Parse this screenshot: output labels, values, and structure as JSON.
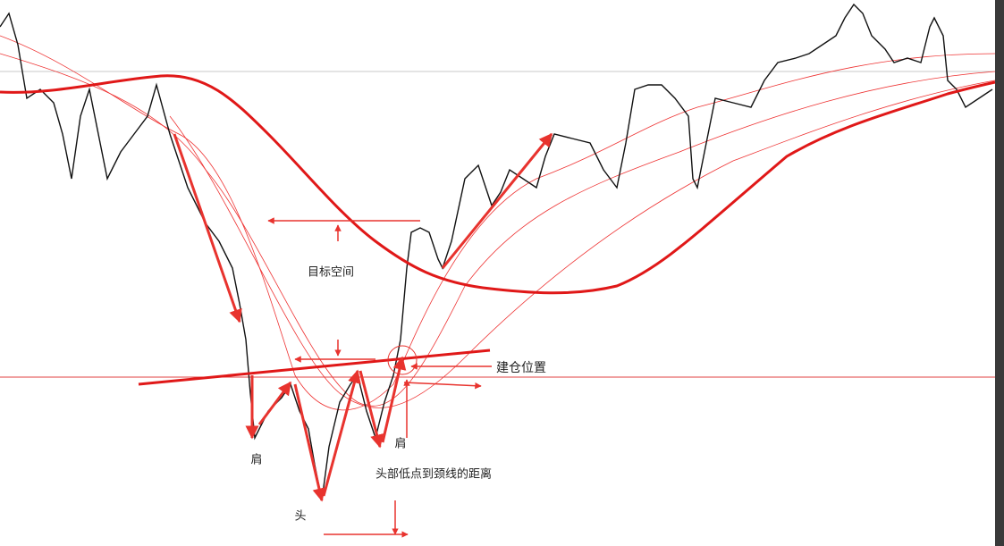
{
  "annotations": {
    "target_space": "目标空间",
    "entry_position": "建仓位置",
    "left_shoulder": "肩",
    "head": "头",
    "right_shoulder": "肩",
    "head_to_neckline": "头部低点到颈线的距离"
  }
}
